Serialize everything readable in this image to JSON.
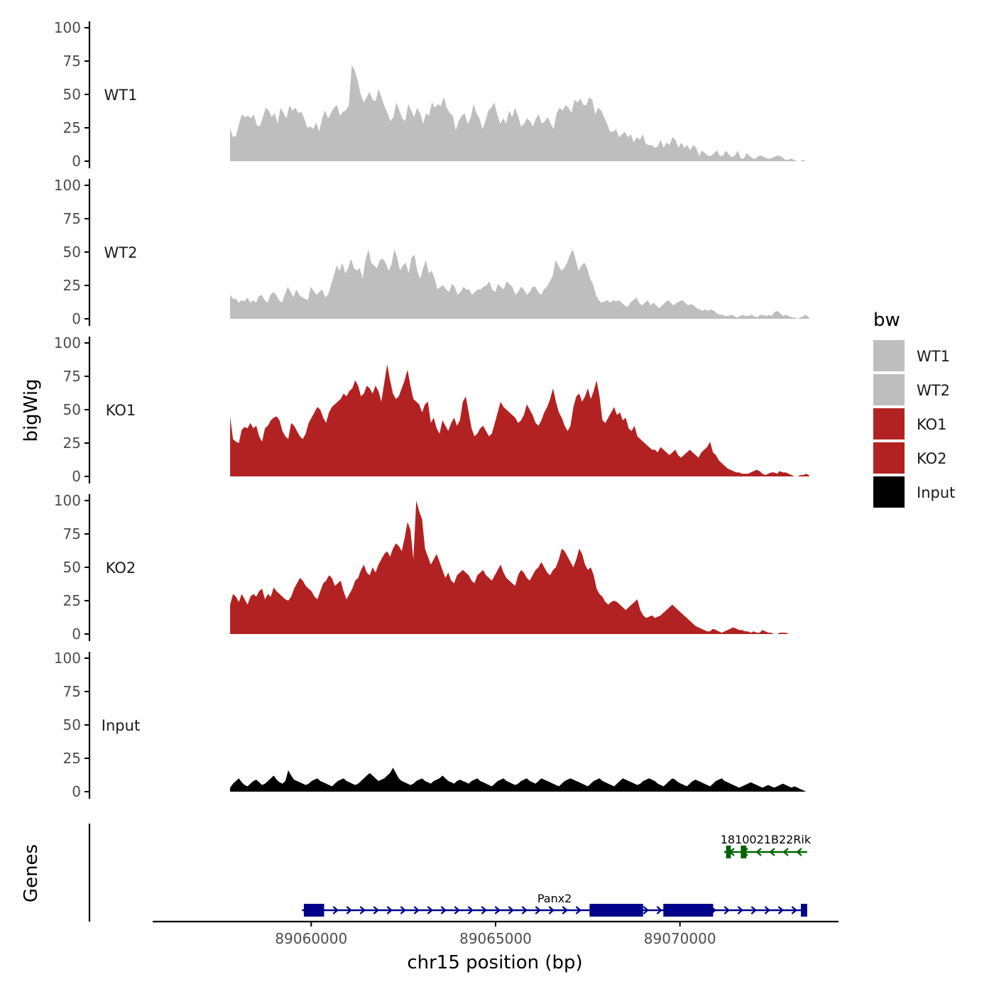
{
  "colors": {
    "wt": "#bebebe",
    "ko": "#b22222",
    "input": "#000000",
    "gene_plus": "#00008b",
    "gene_minus": "#006400",
    "axis": "#000000"
  },
  "legend": {
    "title": "bw",
    "items": [
      {
        "label": "WT1",
        "color": "#bebebe"
      },
      {
        "label": "WT2",
        "color": "#bebebe"
      },
      {
        "label": "KO1",
        "color": "#b22222"
      },
      {
        "label": "KO2",
        "color": "#b22222"
      },
      {
        "label": "Input",
        "color": "#000000"
      }
    ]
  },
  "chart_data": {
    "type": "area",
    "ylabel": "bigWig",
    "genes_label": "Genes",
    "xlabel": "chr15 position (bp)",
    "xlim": [
      89055700,
      89074300
    ],
    "ylim": [
      0,
      100
    ],
    "x_range": [
      89057800,
      89073500
    ],
    "yticks": [
      "0",
      "25",
      "50",
      "75",
      "100"
    ],
    "xticks": [
      {
        "value": 89060000,
        "label": "89060000"
      },
      {
        "value": 89065000,
        "label": "89065000"
      },
      {
        "value": 89070000,
        "label": "89070000"
      }
    ],
    "series": [
      {
        "name": "WT1",
        "color": "#bebebe",
        "values": [
          25,
          18,
          19,
          28,
          35,
          33,
          34,
          32,
          35,
          27,
          26,
          33,
          40,
          38,
          33,
          36,
          28,
          40,
          36,
          32,
          42,
          38,
          40,
          36,
          37,
          32,
          25,
          26,
          24,
          29,
          22,
          32,
          38,
          32,
          36,
          40,
          42,
          34,
          37,
          38,
          42,
          72,
          68,
          60,
          50,
          44,
          48,
          52,
          46,
          45,
          54,
          48,
          41,
          36,
          30,
          33,
          44,
          38,
          32,
          30,
          43,
          38,
          33,
          40,
          36,
          28,
          36,
          34,
          44,
          40,
          43,
          41,
          48,
          40,
          36,
          34,
          23,
          30,
          34,
          36,
          28,
          32,
          43,
          36,
          32,
          24,
          30,
          38,
          40,
          44,
          35,
          28,
          32,
          28,
          38,
          33,
          40,
          34,
          26,
          28,
          32,
          30,
          26,
          32,
          35,
          28,
          30,
          33,
          28,
          24,
          36,
          40,
          38,
          42,
          40,
          36,
          46,
          44,
          47,
          42,
          42,
          48,
          46,
          35,
          40,
          38,
          33,
          28,
          22,
          22,
          24,
          18,
          20,
          22,
          18,
          20,
          14,
          18,
          16,
          20,
          13,
          12,
          12,
          10,
          11,
          16,
          10,
          14,
          12,
          18,
          16,
          10,
          14,
          10,
          12,
          8,
          12,
          10,
          4,
          8,
          6,
          4,
          4,
          6,
          8,
          4,
          4,
          8,
          5,
          3,
          4,
          8,
          2,
          2,
          6,
          4,
          2,
          2,
          4,
          4,
          3,
          2,
          2,
          3,
          4,
          4,
          3,
          1,
          1,
          2,
          1,
          0,
          0,
          1,
          0,
          0
        ]
      },
      {
        "name": "WT2",
        "color": "#bebebe",
        "values": [
          18,
          15,
          15,
          12,
          14,
          13,
          16,
          12,
          14,
          12,
          17,
          18,
          14,
          12,
          18,
          20,
          18,
          14,
          12,
          18,
          24,
          20,
          16,
          22,
          18,
          16,
          15,
          14,
          24,
          21,
          18,
          20,
          22,
          16,
          18,
          25,
          32,
          40,
          36,
          42,
          34,
          38,
          45,
          38,
          36,
          38,
          30,
          44,
          52,
          42,
          40,
          38,
          44,
          45,
          42,
          36,
          40,
          52,
          46,
          36,
          40,
          42,
          34,
          46,
          48,
          36,
          30,
          38,
          44,
          34,
          36,
          30,
          22,
          24,
          25,
          22,
          20,
          26,
          24,
          18,
          20,
          24,
          22,
          22,
          18,
          20,
          22,
          22,
          24,
          25,
          28,
          22,
          20,
          26,
          24,
          22,
          28,
          26,
          24,
          18,
          20,
          24,
          22,
          18,
          20,
          24,
          24,
          20,
          18,
          22,
          24,
          28,
          32,
          44,
          40,
          36,
          38,
          42,
          48,
          52,
          44,
          36,
          40,
          42,
          38,
          30,
          26,
          18,
          14,
          12,
          13,
          14,
          12,
          14,
          13,
          14,
          12,
          10,
          9,
          12,
          14,
          16,
          12,
          10,
          12,
          14,
          10,
          12,
          10,
          8,
          10,
          12,
          14,
          12,
          10,
          12,
          13,
          14,
          12,
          10,
          11,
          10,
          8,
          7,
          6,
          7,
          6,
          7,
          6,
          4,
          3,
          3,
          2,
          2,
          3,
          2,
          1,
          2,
          3,
          2,
          2,
          3,
          2,
          1,
          3,
          3,
          2,
          3,
          2,
          5,
          6,
          4,
          2,
          3,
          2,
          1,
          1,
          0,
          1,
          2,
          3,
          1
        ]
      },
      {
        "name": "KO1",
        "color": "#b22222",
        "values": [
          45,
          28,
          26,
          25,
          35,
          37,
          36,
          40,
          36,
          38,
          30,
          26,
          36,
          38,
          42,
          44,
          45,
          42,
          34,
          30,
          28,
          40,
          38,
          34,
          30,
          28,
          32,
          40,
          44,
          48,
          52,
          50,
          44,
          40,
          48,
          52,
          54,
          56,
          58,
          62,
          60,
          64,
          66,
          72,
          68,
          60,
          62,
          68,
          66,
          62,
          68,
          64,
          56,
          70,
          84,
          72,
          62,
          58,
          60,
          66,
          72,
          80,
          68,
          58,
          56,
          54,
          48,
          54,
          56,
          40,
          44,
          36,
          32,
          42,
          38,
          34,
          40,
          44,
          38,
          42,
          56,
          60,
          48,
          36,
          30,
          32,
          36,
          38,
          34,
          30,
          32,
          40,
          48,
          56,
          52,
          50,
          48,
          46,
          44,
          40,
          42,
          46,
          54,
          50,
          46,
          40,
          38,
          42,
          48,
          52,
          58,
          66,
          56,
          48,
          44,
          38,
          34,
          38,
          52,
          60,
          62,
          56,
          60,
          66,
          58,
          64,
          72,
          60,
          42,
          40,
          44,
          48,
          52,
          46,
          48,
          42,
          44,
          36,
          34,
          38,
          30,
          28,
          26,
          24,
          22,
          20,
          20,
          18,
          22,
          20,
          18,
          16,
          18,
          20,
          16,
          14,
          16,
          18,
          20,
          18,
          16,
          14,
          18,
          20,
          22,
          26,
          18,
          16,
          12,
          10,
          8,
          6,
          5,
          4,
          3,
          3,
          2,
          2,
          2,
          3,
          4,
          5,
          4,
          2,
          1,
          2,
          3,
          3,
          2,
          4,
          3,
          3,
          2,
          1,
          0,
          0,
          1,
          1,
          2,
          1
        ]
      },
      {
        "name": "KO2",
        "color": "#b22222",
        "values": [
          22,
          30,
          28,
          24,
          30,
          26,
          22,
          28,
          30,
          28,
          32,
          34,
          26,
          30,
          28,
          35,
          32,
          30,
          28,
          26,
          25,
          28,
          34,
          38,
          42,
          40,
          36,
          34,
          32,
          28,
          26,
          32,
          38,
          40,
          44,
          42,
          36,
          38,
          40,
          32,
          26,
          30,
          34,
          40,
          42,
          48,
          52,
          46,
          44,
          50,
          46,
          52,
          56,
          60,
          62,
          58,
          64,
          68,
          66,
          62,
          72,
          84,
          78,
          56,
          100,
          92,
          86,
          64,
          58,
          52,
          56,
          60,
          54,
          48,
          42,
          46,
          40,
          38,
          44,
          46,
          48,
          46,
          44,
          40,
          38,
          44,
          46,
          48,
          44,
          42,
          40,
          44,
          48,
          52,
          46,
          42,
          40,
          38,
          36,
          44,
          48,
          46,
          42,
          40,
          44,
          48,
          50,
          54,
          50,
          46,
          44,
          48,
          50,
          56,
          64,
          62,
          58,
          54,
          50,
          56,
          64,
          60,
          52,
          48,
          50,
          44,
          34,
          30,
          28,
          24,
          22,
          24,
          25,
          24,
          22,
          20,
          18,
          20,
          22,
          24,
          26,
          18,
          14,
          12,
          13,
          14,
          12,
          13,
          14,
          16,
          18,
          20,
          22,
          20,
          18,
          16,
          14,
          12,
          10,
          8,
          6,
          5,
          4,
          3,
          2,
          2,
          4,
          3,
          2,
          1,
          2,
          3,
          4,
          5,
          4,
          3,
          3,
          2,
          2,
          1,
          2,
          1,
          1,
          3,
          2,
          1,
          1,
          0,
          0,
          1,
          1,
          1,
          0,
          0,
          0,
          0,
          0,
          0,
          0,
          0
        ]
      },
      {
        "name": "Input",
        "color": "#000000",
        "values": [
          3,
          6,
          8,
          10,
          7,
          5,
          4,
          6,
          8,
          9,
          7,
          5,
          6,
          8,
          10,
          12,
          9,
          7,
          6,
          8,
          16,
          12,
          9,
          8,
          7,
          6,
          5,
          6,
          8,
          9,
          10,
          8,
          7,
          6,
          5,
          4,
          6,
          8,
          9,
          10,
          8,
          7,
          6,
          5,
          6,
          8,
          10,
          12,
          14,
          12,
          10,
          8,
          9,
          10,
          12,
          14,
          18,
          14,
          10,
          8,
          7,
          6,
          5,
          6,
          8,
          9,
          10,
          8,
          7,
          6,
          8,
          9,
          10,
          12,
          10,
          8,
          7,
          6,
          8,
          9,
          8,
          7,
          6,
          8,
          9,
          10,
          8,
          7,
          6,
          5,
          4,
          6,
          8,
          9,
          10,
          8,
          7,
          6,
          5,
          6,
          8,
          9,
          10,
          8,
          7,
          6,
          8,
          10,
          9,
          8,
          7,
          6,
          5,
          4,
          6,
          8,
          9,
          10,
          9,
          8,
          7,
          6,
          5,
          4,
          6,
          8,
          9,
          10,
          8,
          7,
          6,
          5,
          4,
          6,
          8,
          10,
          9,
          8,
          7,
          6,
          5,
          6,
          8,
          9,
          10,
          9,
          8,
          6,
          5,
          4,
          6,
          8,
          10,
          9,
          7,
          6,
          5,
          4,
          6,
          8,
          9,
          8,
          7,
          6,
          5,
          4,
          6,
          8,
          9,
          10,
          8,
          7,
          6,
          5,
          4,
          3,
          4,
          5,
          6,
          7,
          6,
          5,
          4,
          3,
          4,
          5,
          4,
          3,
          4,
          5,
          6,
          5,
          4,
          3,
          4,
          3,
          2,
          1,
          0,
          0
        ]
      }
    ],
    "genes": [
      {
        "name": "Panx2",
        "strand": "+",
        "color": "#00008b",
        "start": 89059750,
        "end": 89073450,
        "exons": [
          [
            89059800,
            89060350
          ],
          [
            89067550,
            89069000
          ],
          [
            89069550,
            89070900
          ],
          [
            89073280,
            89073450
          ]
        ]
      },
      {
        "name": "1810021B22Rik",
        "strand": "-",
        "color": "#006400",
        "start": 89071200,
        "end": 89073450,
        "exons": [
          [
            89071250,
            89071380
          ],
          [
            89071650,
            89071800
          ]
        ]
      }
    ]
  }
}
